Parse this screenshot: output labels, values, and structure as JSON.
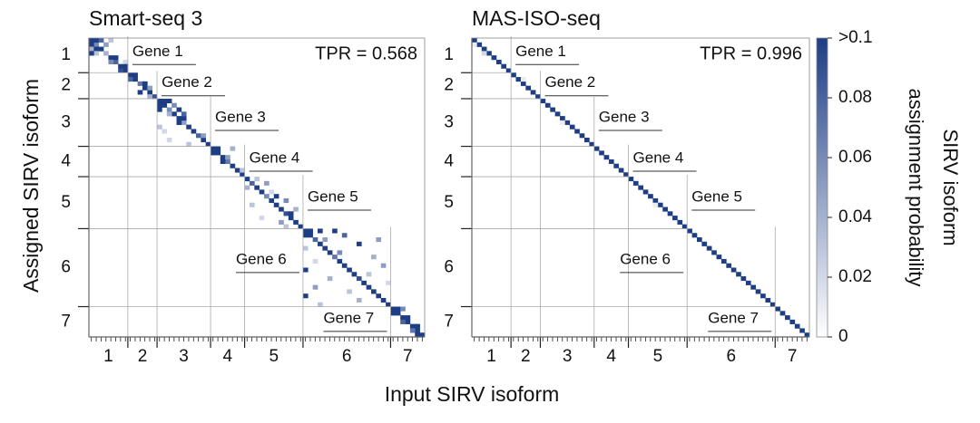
{
  "chart_data": [
    {
      "type": "heatmap",
      "title": "Smart-seq 3",
      "annotation": "TPR = 0.568",
      "xlabel": "Input SIRV isoform",
      "ylabel": "Assigned SIRV isoform",
      "categories": [
        "1",
        "2",
        "3",
        "4",
        "5",
        "6",
        "7"
      ],
      "genes": [
        {
          "label": "Gene 1",
          "isoforms": 8
        },
        {
          "label": "Gene 2",
          "isoforms": 6
        },
        {
          "label": "Gene 3",
          "isoforms": 11
        },
        {
          "label": "Gene 4",
          "isoforms": 7
        },
        {
          "label": "Gene 5",
          "isoforms": 12
        },
        {
          "label": "Gene 6",
          "isoforms": 18
        },
        {
          "label": "Gene 7",
          "isoforms": 7
        }
      ],
      "diagonal": [
        0.1,
        0.06,
        0.1,
        0.04,
        0.1,
        0.08,
        0.1,
        0.1,
        0.1,
        0.1,
        0.07,
        0.1,
        0.1,
        0.09,
        0.1,
        0.1,
        0.06,
        0.1,
        0.1,
        0.05,
        0.1,
        0.1,
        0.08,
        0.1,
        0.1,
        0.1,
        0.1,
        0.1,
        0.07,
        0.1,
        0.1,
        0.1,
        0.1,
        0.08,
        0.1,
        0.1,
        0.06,
        0.1,
        0.1,
        0.1,
        0.09,
        0.1,
        0.1,
        0.1,
        0.1,
        0.1,
        0.08,
        0.1,
        0.1,
        0.1,
        0.07,
        0.1,
        0.1,
        0.1,
        0.1,
        0.09,
        0.1,
        0.1,
        0.1,
        0.1,
        0.1,
        0.1,
        0.1,
        0.1,
        0.1,
        0.1,
        0.1,
        0.1,
        0.1
      ],
      "cells": [
        [
          0,
          1,
          0.1
        ],
        [
          0,
          2,
          0.08
        ],
        [
          1,
          0,
          0.1
        ],
        [
          1,
          3,
          0.05
        ],
        [
          2,
          0,
          0.04
        ],
        [
          2,
          1,
          0.1
        ],
        [
          3,
          1,
          0.03
        ],
        [
          4,
          5,
          0.1
        ],
        [
          5,
          4,
          0.06
        ],
        [
          5,
          7,
          0.02
        ],
        [
          6,
          7,
          0.1
        ],
        [
          7,
          6,
          0.09
        ],
        [
          3,
          0,
          0.1
        ],
        [
          0,
          4,
          0.03
        ],
        [
          8,
          9,
          0.1
        ],
        [
          9,
          8,
          0.08
        ],
        [
          10,
          11,
          0.1
        ],
        [
          11,
          12,
          0.05
        ],
        [
          12,
          10,
          0.1
        ],
        [
          13,
          12,
          0.04
        ],
        [
          14,
          15,
          0.1
        ],
        [
          14,
          16,
          0.1
        ],
        [
          15,
          14,
          0.1
        ],
        [
          15,
          17,
          0.06
        ],
        [
          16,
          18,
          0.1
        ],
        [
          17,
          16,
          0.04
        ],
        [
          18,
          19,
          0.1
        ],
        [
          19,
          18,
          0.1
        ],
        [
          20,
          14,
          0.03
        ],
        [
          21,
          15,
          0.02
        ],
        [
          22,
          23,
          0.05
        ],
        [
          23,
          16,
          0.02
        ],
        [
          24,
          20,
          0.03
        ],
        [
          16,
          14,
          0.1
        ],
        [
          17,
          19,
          0.08
        ],
        [
          25,
          26,
          0.1
        ],
        [
          26,
          25,
          0.1
        ],
        [
          27,
          28,
          0.05
        ],
        [
          28,
          27,
          0.1
        ],
        [
          25,
          29,
          0.04
        ],
        [
          30,
          31,
          0.03
        ],
        [
          32,
          34,
          0.03
        ],
        [
          33,
          36,
          0.05
        ],
        [
          35,
          37,
          0.02
        ],
        [
          36,
          38,
          0.1
        ],
        [
          37,
          40,
          0.06
        ],
        [
          38,
          33,
          0.03
        ],
        [
          39,
          42,
          0.04
        ],
        [
          40,
          41,
          0.1
        ],
        [
          41,
          35,
          0.02
        ],
        [
          42,
          39,
          0.05
        ],
        [
          43,
          40,
          0.03
        ],
        [
          34,
          32,
          0.04
        ],
        [
          44,
          45,
          0.1
        ],
        [
          44,
          47,
          0.1
        ],
        [
          44,
          50,
          0.1
        ],
        [
          45,
          44,
          0.1
        ],
        [
          45,
          52,
          0.08
        ],
        [
          46,
          48,
          0.05
        ],
        [
          47,
          55,
          0.1
        ],
        [
          48,
          44,
          0.03
        ],
        [
          49,
          51,
          0.06
        ],
        [
          50,
          58,
          0.04
        ],
        [
          51,
          46,
          0.02
        ],
        [
          52,
          60,
          0.05
        ],
        [
          53,
          44,
          0.1
        ],
        [
          54,
          57,
          0.03
        ],
        [
          55,
          49,
          0.04
        ],
        [
          56,
          61,
          0.02
        ],
        [
          57,
          46,
          0.05
        ],
        [
          58,
          53,
          0.03
        ],
        [
          59,
          44,
          0.1
        ],
        [
          60,
          55,
          0.04
        ],
        [
          61,
          47,
          0.03
        ],
        [
          46,
          59,
          0.05
        ],
        [
          62,
          63,
          0.1
        ],
        [
          63,
          62,
          0.1
        ],
        [
          64,
          65,
          0.1
        ],
        [
          65,
          64,
          0.08
        ],
        [
          66,
          67,
          0.1
        ],
        [
          67,
          66,
          0.07
        ],
        [
          68,
          67,
          0.1
        ],
        [
          62,
          64,
          0.06
        ]
      ]
    },
    {
      "type": "heatmap",
      "title": "MAS-ISO-seq",
      "annotation": "TPR = 0.996",
      "categories": [
        "1",
        "2",
        "3",
        "4",
        "5",
        "6",
        "7"
      ],
      "genes": [
        {
          "label": "Gene 1",
          "isoforms": 8
        },
        {
          "label": "Gene 2",
          "isoforms": 6
        },
        {
          "label": "Gene 3",
          "isoforms": 11
        },
        {
          "label": "Gene 4",
          "isoforms": 7
        },
        {
          "label": "Gene 5",
          "isoforms": 12
        },
        {
          "label": "Gene 6",
          "isoforms": 18
        },
        {
          "label": "Gene 7",
          "isoforms": 7
        }
      ],
      "diagonal": [
        0.1,
        0.1,
        0.1,
        0.1,
        0.1,
        0.1,
        0.1,
        0.1,
        0.1,
        0.1,
        0.1,
        0.1,
        0.1,
        0.1,
        0.1,
        0.1,
        0.1,
        0.1,
        0.1,
        0.1,
        0.1,
        0.1,
        0.1,
        0.1,
        0.1,
        0.1,
        0.1,
        0.1,
        0.1,
        0.1,
        0.1,
        0.1,
        0.1,
        0.1,
        0.1,
        0.1,
        0.1,
        0.1,
        0.1,
        0.1,
        0.1,
        0.1,
        0.1,
        0.1,
        0.1,
        0.1,
        0.1,
        0.1,
        0.1,
        0.1,
        0.1,
        0.1,
        0.1,
        0.1,
        0.1,
        0.1,
        0.1,
        0.1,
        0.1,
        0.1,
        0.1,
        0.1,
        0.1,
        0.1,
        0.1,
        0.1,
        0.1,
        0.1,
        0.1
      ],
      "cells": [
        [
          3,
          2,
          0.02
        ],
        [
          9,
          10,
          0.01
        ],
        [
          19,
          18,
          0.01
        ],
        [
          38,
          37,
          0.01
        ],
        [
          1,
          0,
          0.01
        ]
      ],
      "colorbar": {
        "title": [
          "SIRV isoform",
          "assignment probability"
        ],
        "clim": [
          0,
          0.1
        ],
        "colors": [
          "#ffffff",
          "#1d3d85"
        ],
        "ticks": [
          0,
          0.02,
          0.04,
          0.06,
          0.08,
          {
            "value": 0.1,
            "label": ">0.1"
          }
        ]
      }
    }
  ]
}
